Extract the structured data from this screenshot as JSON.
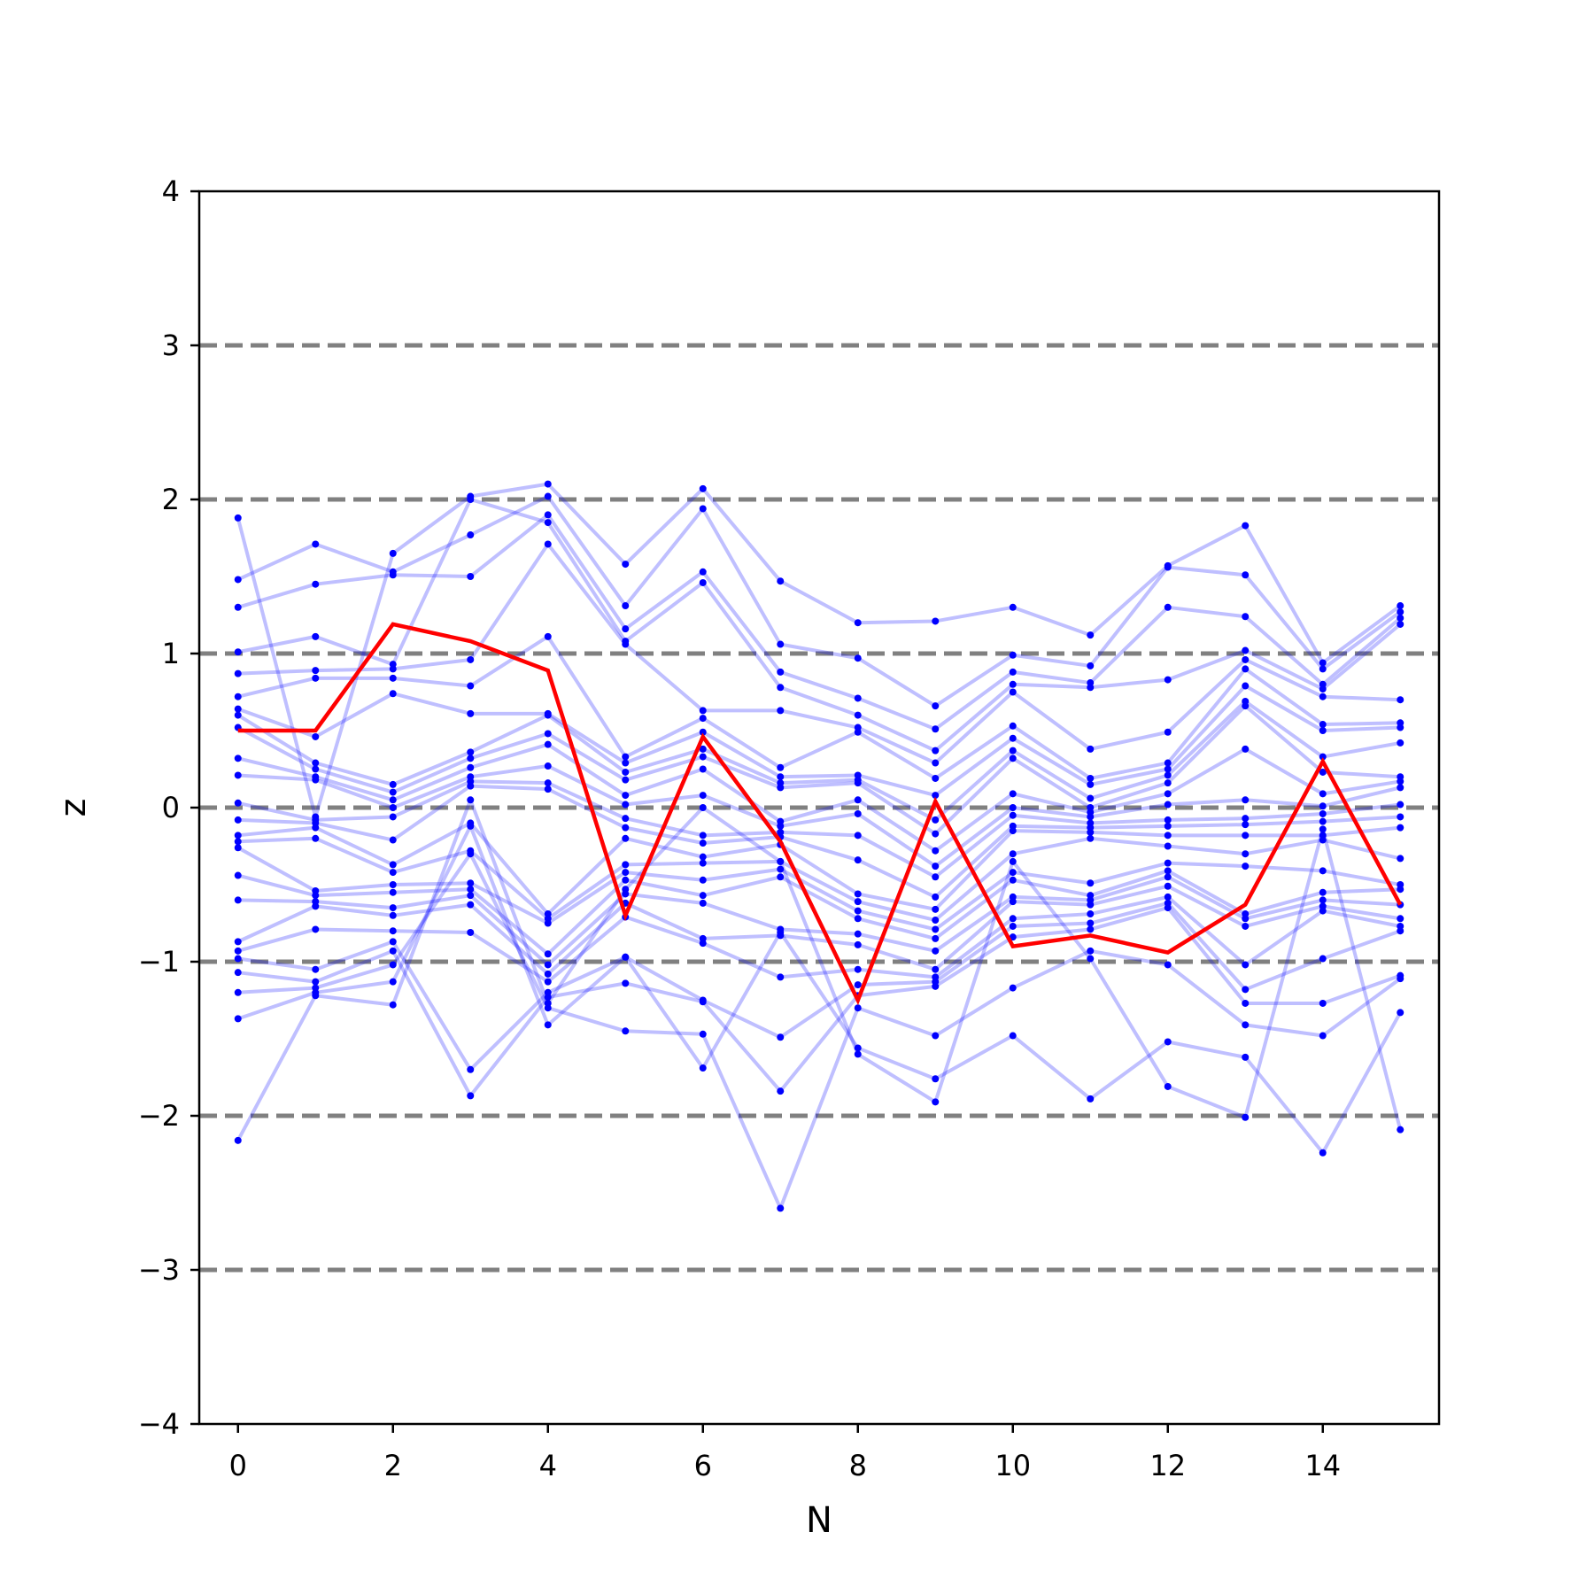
{
  "chart_data": {
    "type": "line",
    "title": "",
    "xlabel": "N",
    "ylabel": "z",
    "xlim": [
      -0.5,
      15.5
    ],
    "ylim": [
      -4,
      4
    ],
    "x": [
      0,
      1,
      2,
      3,
      4,
      5,
      6,
      7,
      8,
      9,
      10,
      11,
      12,
      13,
      14,
      15
    ],
    "x_ticks": [
      0,
      2,
      4,
      6,
      8,
      10,
      12,
      14
    ],
    "x_tick_labels": [
      "0",
      "2",
      "4",
      "6",
      "8",
      "10",
      "12",
      "14"
    ],
    "y_ticks": [
      -4,
      -3,
      -2,
      -1,
      0,
      1,
      2,
      3,
      4
    ],
    "y_tick_labels": [
      "−4",
      "−3",
      "−2",
      "−1",
      "0",
      "1",
      "2",
      "3",
      "4"
    ],
    "reference_lines": {
      "y": [
        -3,
        -2,
        -1,
        0,
        1,
        2,
        3
      ],
      "style": "dashed",
      "color": "#808080"
    },
    "grid": false,
    "legend": "none",
    "colors": {
      "samples": "#0000ff",
      "highlight": "#ff0000"
    },
    "highlight_series": {
      "values": [
        0.5,
        0.5,
        1.19,
        1.08,
        0.89,
        -0.7,
        0.46,
        -0.22,
        -1.25,
        0.04,
        -0.9,
        -0.83,
        -0.94,
        -0.63,
        0.3,
        -0.63
      ]
    },
    "series": [
      {
        "values": [
          1.88,
          -0.06,
          1.65,
          2.02,
          2.1,
          1.58,
          2.07,
          1.47,
          1.2,
          1.21,
          1.3,
          1.12,
          1.57,
          1.83,
          0.94,
          1.31
        ]
      },
      {
        "values": [
          1.48,
          1.71,
          1.53,
          1.77,
          2.02,
          1.31,
          1.94,
          1.06,
          0.97,
          0.66,
          0.99,
          0.92,
          1.56,
          1.51,
          0.9,
          1.27
        ]
      },
      {
        "values": [
          1.3,
          1.45,
          1.51,
          1.5,
          1.9,
          1.16,
          1.53,
          0.88,
          0.71,
          0.51,
          0.88,
          0.81,
          1.3,
          1.24,
          0.8,
          1.23
        ]
      },
      {
        "values": [
          1.01,
          1.11,
          0.93,
          2.0,
          1.85,
          1.08,
          1.46,
          0.78,
          0.6,
          0.37,
          0.8,
          0.78,
          0.83,
          1.02,
          0.77,
          1.19
        ]
      },
      {
        "values": [
          0.87,
          0.89,
          0.9,
          0.96,
          1.71,
          1.06,
          0.63,
          0.63,
          0.52,
          0.29,
          0.75,
          0.38,
          0.49,
          0.96,
          0.72,
          0.7
        ]
      },
      {
        "values": [
          0.72,
          0.84,
          0.84,
          0.79,
          1.11,
          0.33,
          0.58,
          0.26,
          0.49,
          0.19,
          0.53,
          0.19,
          0.29,
          0.9,
          0.54,
          0.55
        ]
      },
      {
        "values": [
          0.64,
          0.46,
          0.74,
          0.61,
          0.61,
          0.29,
          0.49,
          0.2,
          0.21,
          0.08,
          0.45,
          0.15,
          0.25,
          0.79,
          0.5,
          0.52
        ]
      },
      {
        "values": [
          0.6,
          0.29,
          0.15,
          0.36,
          0.6,
          0.23,
          0.38,
          0.16,
          0.18,
          -0.08,
          0.37,
          0.06,
          0.21,
          0.69,
          0.33,
          0.42
        ]
      },
      {
        "values": [
          0.52,
          0.25,
          0.1,
          0.32,
          0.48,
          0.18,
          0.33,
          0.13,
          0.16,
          -0.17,
          0.32,
          0.0,
          0.16,
          0.66,
          0.23,
          0.2
        ]
      },
      {
        "values": [
          0.32,
          0.2,
          0.05,
          0.26,
          0.41,
          0.08,
          0.25,
          -0.09,
          0.05,
          -0.28,
          0.09,
          -0.03,
          0.09,
          0.38,
          0.09,
          0.17
        ]
      },
      {
        "values": [
          0.21,
          0.18,
          0.0,
          0.2,
          0.27,
          0.02,
          0.08,
          -0.12,
          -0.04,
          -0.38,
          0.0,
          -0.06,
          0.02,
          0.05,
          0.01,
          0.13
        ]
      },
      {
        "values": [
          0.03,
          -0.08,
          -0.06,
          0.17,
          0.16,
          -0.07,
          -0.18,
          -0.16,
          -0.18,
          -0.45,
          -0.05,
          -0.1,
          -0.08,
          -0.07,
          -0.04,
          0.02
        ]
      },
      {
        "values": [
          -0.08,
          -0.1,
          -0.21,
          0.14,
          0.12,
          -0.13,
          -0.23,
          -0.19,
          -0.34,
          -0.58,
          -0.12,
          -0.13,
          -0.12,
          -0.11,
          -0.09,
          -0.06
        ]
      },
      {
        "values": [
          -0.18,
          -0.13,
          -0.37,
          -0.1,
          -0.69,
          -0.2,
          -0.32,
          -0.24,
          -0.56,
          -0.66,
          -0.15,
          -0.16,
          -0.18,
          -0.18,
          -0.18,
          -0.13
        ]
      },
      {
        "values": [
          -0.22,
          -0.2,
          -0.42,
          -0.28,
          -0.72,
          -0.37,
          -0.36,
          -0.35,
          -0.61,
          -0.73,
          -0.3,
          -0.2,
          -0.25,
          -0.3,
          -0.21,
          -0.33
        ]
      },
      {
        "values": [
          -0.26,
          -0.54,
          -0.5,
          -0.49,
          -0.75,
          -0.42,
          -0.47,
          -0.4,
          -0.67,
          -0.79,
          -0.42,
          -0.49,
          -0.36,
          -0.38,
          -0.41,
          -0.5
        ]
      },
      {
        "values": [
          -0.44,
          -0.57,
          -0.55,
          -0.53,
          -0.95,
          -0.47,
          -0.57,
          -0.45,
          -0.72,
          -0.85,
          -0.47,
          -0.57,
          -0.41,
          -0.69,
          -0.55,
          -0.53
        ]
      },
      {
        "values": [
          -0.6,
          -0.61,
          -0.65,
          -0.57,
          -1.02,
          -0.56,
          -0.62,
          -0.79,
          -0.82,
          -0.93,
          -0.58,
          -0.6,
          -0.45,
          -0.72,
          -0.6,
          -0.63
        ]
      },
      {
        "values": [
          -0.87,
          -0.64,
          -0.7,
          -0.63,
          -1.08,
          -0.62,
          -0.85,
          -0.83,
          -0.89,
          -1.05,
          -0.61,
          -0.63,
          -0.51,
          -0.77,
          -0.64,
          -0.72
        ]
      },
      {
        "values": [
          -0.93,
          -0.79,
          -0.8,
          -0.81,
          -1.13,
          -0.71,
          -0.88,
          -1.1,
          -1.05,
          -1.1,
          -0.72,
          -0.69,
          -0.58,
          -1.02,
          -0.67,
          -0.77
        ]
      },
      {
        "values": [
          -0.98,
          -1.05,
          -0.87,
          -1.7,
          -1.2,
          -0.97,
          -1.25,
          -1.49,
          -1.15,
          -1.13,
          -0.77,
          -0.75,
          -0.62,
          -1.18,
          -0.98,
          -0.8
        ]
      },
      {
        "values": [
          -1.07,
          -1.13,
          -0.93,
          -1.87,
          -1.23,
          -1.14,
          -1.26,
          -1.84,
          -1.22,
          -1.16,
          -0.84,
          -0.79,
          -0.65,
          -1.27,
          -1.27,
          -1.09
        ]
      },
      {
        "values": [
          -1.2,
          -1.17,
          -1.02,
          -0.3,
          -1.3,
          -1.45,
          -1.47,
          -2.6,
          -1.3,
          -1.48,
          -1.17,
          -0.93,
          -1.02,
          -1.41,
          -1.48,
          -1.11
        ]
      },
      {
        "values": [
          -1.37,
          -1.2,
          -1.13,
          -0.12,
          -1.41,
          -0.97,
          -1.69,
          -0.81,
          -1.56,
          -1.76,
          -1.48,
          -1.89,
          -1.52,
          -1.62,
          -2.24,
          -1.33
        ]
      },
      {
        "values": [
          -2.16,
          -1.22,
          -1.28,
          0.05,
          -1.27,
          -0.53,
          0.0,
          -0.35,
          -1.6,
          -1.91,
          -0.35,
          -0.98,
          -1.81,
          -2.01,
          -0.14,
          -2.09
        ]
      }
    ]
  }
}
